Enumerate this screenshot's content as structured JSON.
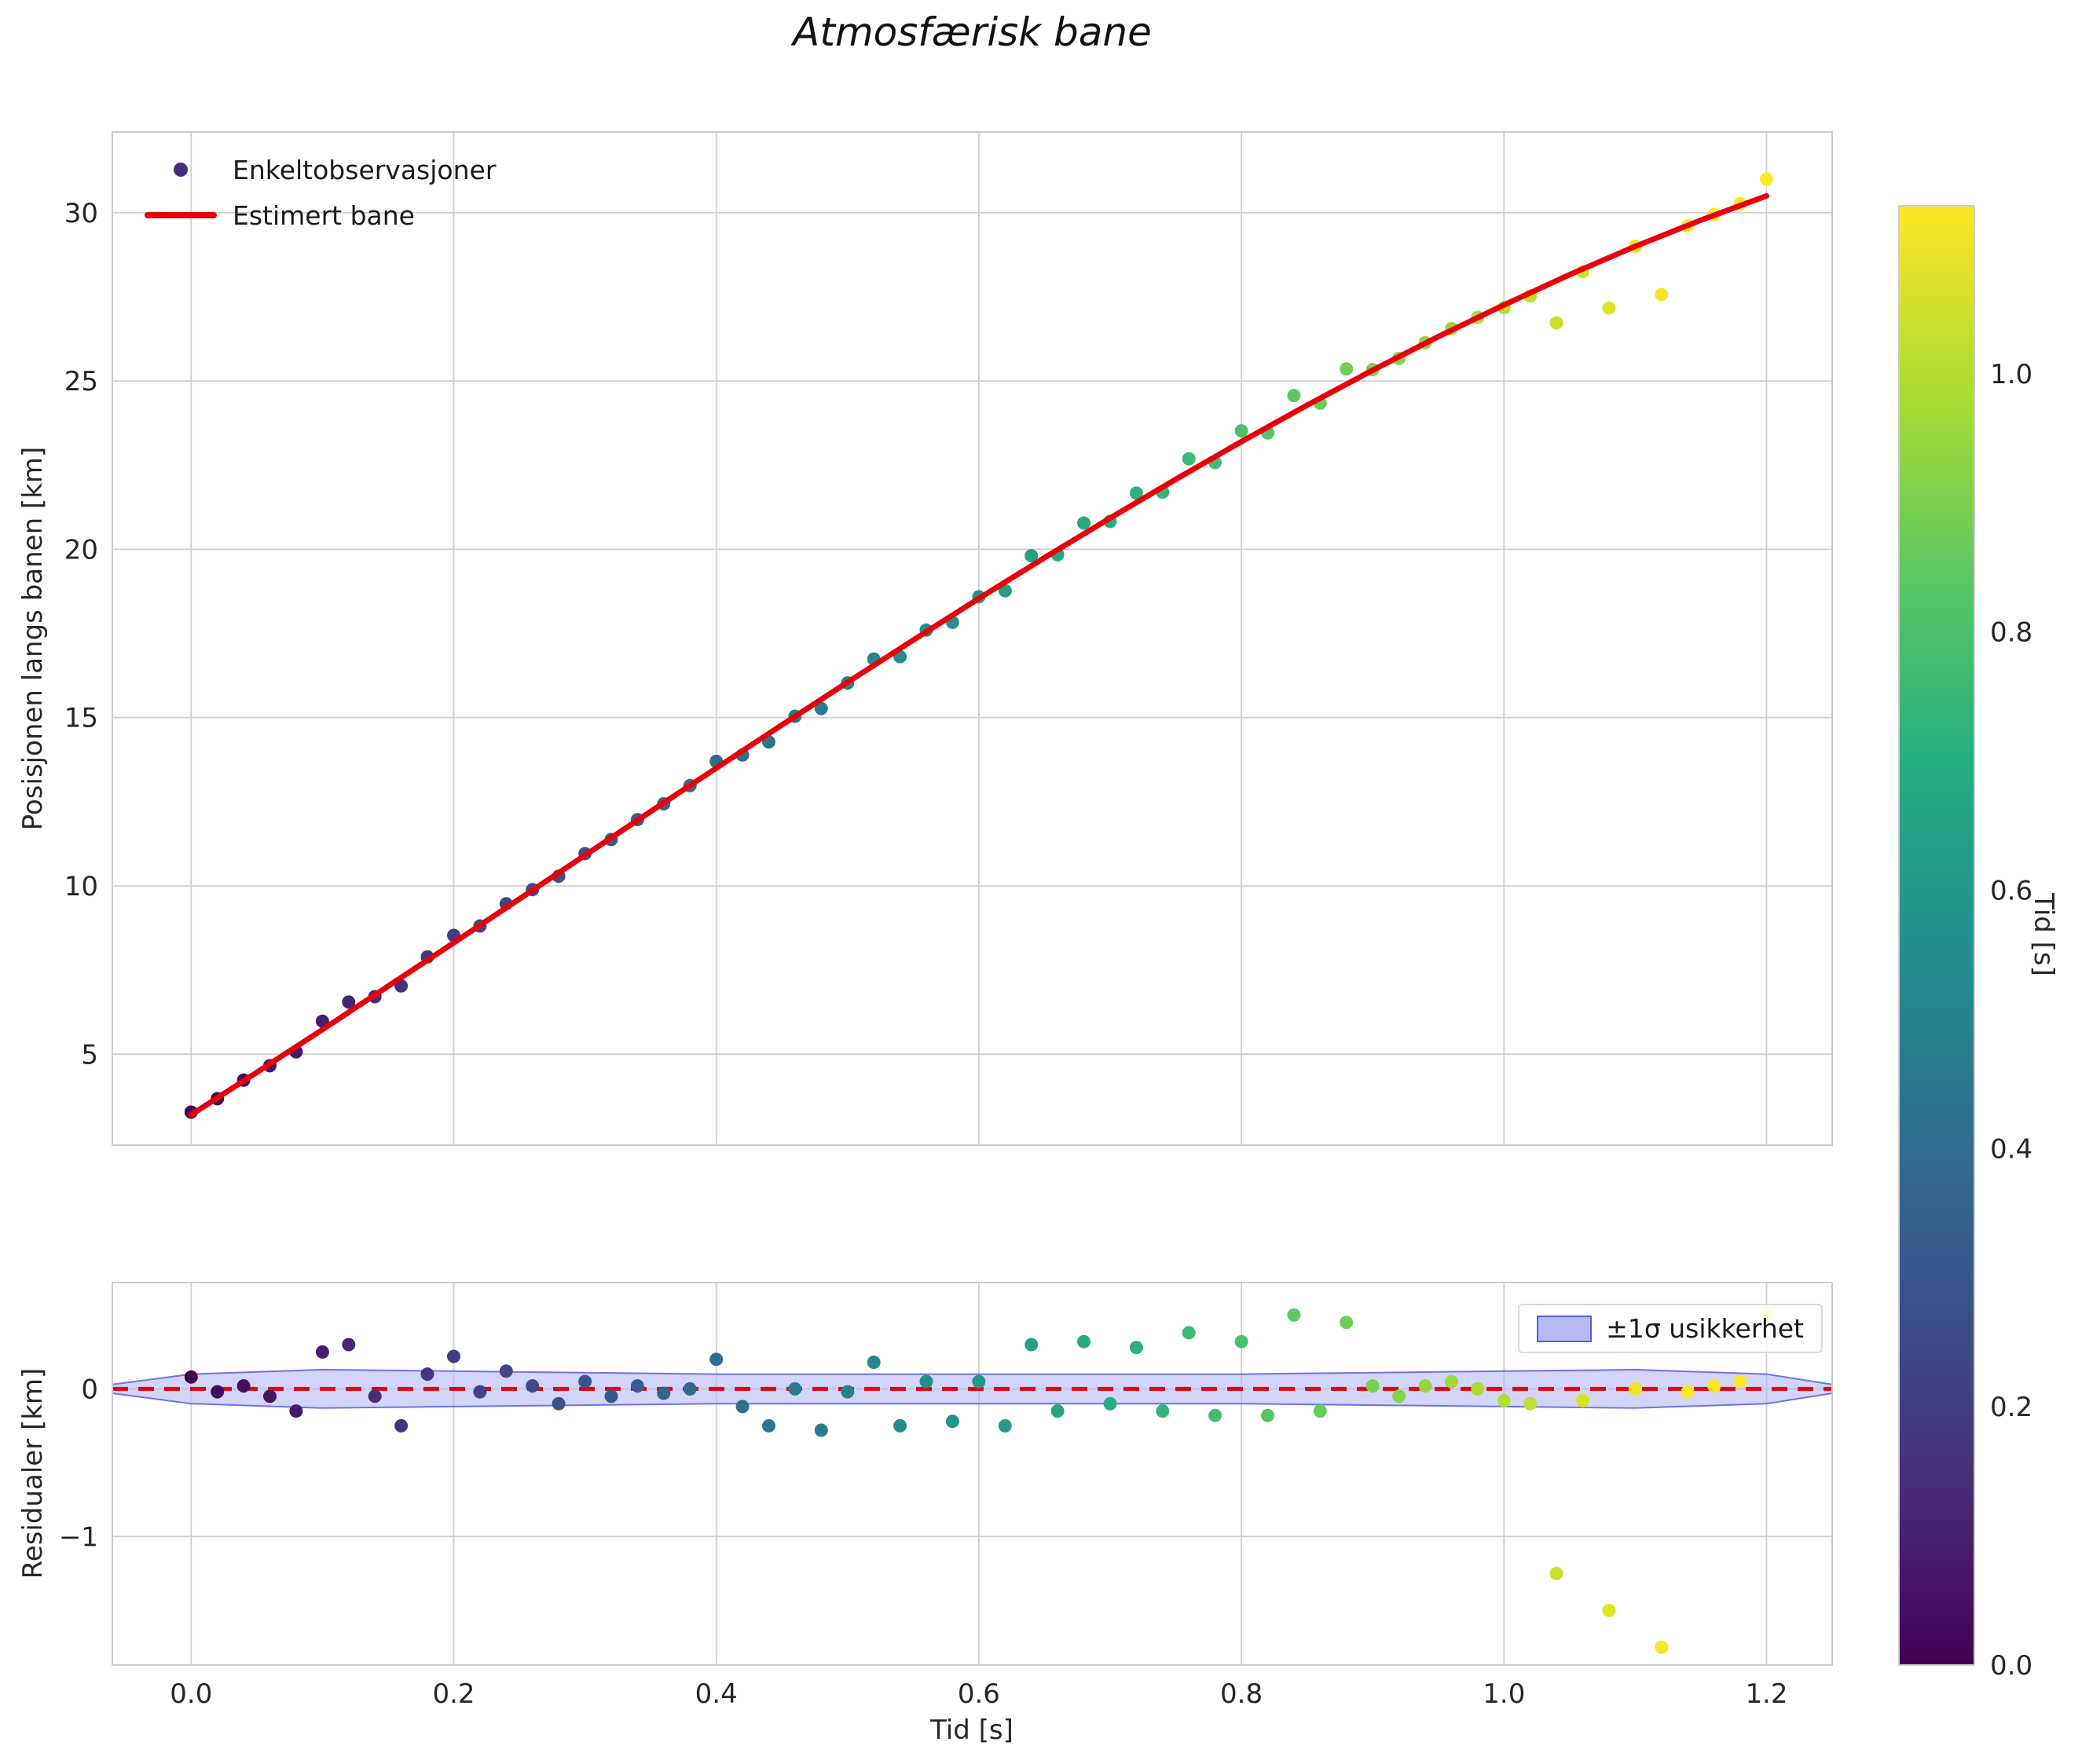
{
  "colors": {
    "fit_line": "#e8000b",
    "grid": "#cfcfcf",
    "spine": "#cccccc",
    "tick_text": "#262626",
    "band_fill": "#b6baf7",
    "band_edge": "#5560e0",
    "legend_marker": "#462d7c",
    "viridis_stops": [
      "#440154",
      "#472d7b",
      "#3b528b",
      "#2c728e",
      "#21918c",
      "#28ae80",
      "#5ec962",
      "#addc30",
      "#fde725"
    ]
  },
  "colorbar": {
    "label": "Tid [s]",
    "vmin": 0,
    "vmax": 1.13,
    "ticks": [
      0,
      0.2,
      0.4,
      0.6,
      0.8,
      1.0
    ],
    "tick_labels": [
      "0.0",
      "0.2",
      "0.4",
      "0.6",
      "0.8",
      "1.0"
    ]
  },
  "chart_data": [
    {
      "id": "trajectory",
      "type": "scatter",
      "title": "Atmosfærisk bane",
      "xlabel": "",
      "ylabel": "Posisjonen langs banen [km]",
      "xlim": [
        -0.06,
        1.25
      ],
      "ylim": [
        2.3,
        32.4
      ],
      "grid": true,
      "legend_position": "upper left",
      "xticks": {
        "values": [
          0,
          0.2,
          0.4,
          0.6,
          0.8,
          1.0,
          1.2
        ],
        "labels": []
      },
      "yticks": {
        "values": [
          5,
          10,
          15,
          20,
          25,
          30
        ],
        "labels": [
          "5",
          "10",
          "15",
          "20",
          "25",
          "30"
        ]
      },
      "series": [
        {
          "name": "Enkeltobservasjoner",
          "type": "scatter",
          "color_by_x": true,
          "x": [
            0.0,
            0.02,
            0.04,
            0.06,
            0.08,
            0.1,
            0.12,
            0.14,
            0.16,
            0.18,
            0.2,
            0.22,
            0.24,
            0.26,
            0.28,
            0.3,
            0.32,
            0.34,
            0.36,
            0.38,
            0.4,
            0.42,
            0.44,
            0.46,
            0.48,
            0.5,
            0.52,
            0.54,
            0.56,
            0.58,
            0.6,
            0.62,
            0.64,
            0.66,
            0.68,
            0.7,
            0.72,
            0.74,
            0.76,
            0.78,
            0.8,
            0.82,
            0.84,
            0.86,
            0.88,
            0.9,
            0.92,
            0.94,
            0.96,
            0.98,
            1.0,
            1.02,
            1.04,
            1.06,
            1.08,
            1.1,
            1.12,
            1.14,
            1.16,
            1.18,
            1.2
          ],
          "y": [
            3.28,
            3.68,
            4.23,
            4.66,
            5.07,
            5.98,
            6.55,
            6.71,
            7.03,
            7.89,
            8.53,
            8.81,
            9.47,
            9.89,
            10.29,
            10.96,
            11.38,
            11.97,
            12.44,
            12.98,
            13.7,
            13.89,
            14.28,
            15.04,
            15.27,
            16.03,
            16.74,
            16.81,
            17.6,
            17.83,
            18.59,
            18.77,
            19.81,
            19.84,
            20.78,
            20.83,
            21.67,
            21.7,
            22.69,
            22.58,
            23.52,
            23.46,
            24.57,
            24.34,
            25.36,
            25.34,
            25.67,
            26.14,
            26.56,
            26.89,
            27.18,
            27.53,
            26.73,
            28.25,
            27.17,
            29.0,
            27.57,
            29.61,
            29.95,
            30.27,
            31.0
          ]
        },
        {
          "name": "Estimert bane",
          "type": "line",
          "width": 7,
          "x": [
            0.0,
            0.05,
            0.1,
            0.15,
            0.2,
            0.25,
            0.3,
            0.35,
            0.4,
            0.45,
            0.5,
            0.55,
            0.6,
            0.65,
            0.7,
            0.75,
            0.8,
            0.85,
            0.9,
            0.95,
            1.0,
            1.05,
            1.1,
            1.15,
            1.2
          ],
          "y": [
            3.2,
            4.46,
            5.73,
            7.02,
            8.31,
            9.61,
            10.91,
            12.21,
            13.5,
            14.78,
            16.05,
            17.3,
            18.54,
            19.75,
            20.93,
            22.08,
            23.2,
            24.28,
            25.32,
            26.32,
            27.26,
            28.16,
            29.0,
            29.78,
            30.5
          ]
        }
      ]
    },
    {
      "id": "residuals",
      "type": "scatter",
      "title": "",
      "xlabel": "Tid [s]",
      "ylabel": "Residualer [km]",
      "xlim": [
        -0.06,
        1.25
      ],
      "ylim": [
        -1.87,
        0.72
      ],
      "grid": true,
      "xticks": {
        "values": [
          0,
          0.2,
          0.4,
          0.6,
          0.8,
          1.0,
          1.2
        ],
        "labels": [
          "0.0",
          "0.2",
          "0.4",
          "0.6",
          "0.8",
          "1.0",
          "1.2"
        ]
      },
      "yticks": {
        "values": [
          0,
          -1
        ],
        "labels": [
          "0",
          "−1"
        ]
      },
      "zero_line": {
        "y": 0,
        "style": "dashed"
      },
      "band": {
        "label": "±1σ usikkerhet",
        "t": [
          -0.06,
          0.0,
          0.1,
          0.2,
          0.3,
          0.4,
          0.5,
          0.6,
          0.7,
          0.8,
          0.9,
          1.0,
          1.1,
          1.2,
          1.25
        ],
        "sigma": [
          0.03,
          0.1,
          0.13,
          0.12,
          0.11,
          0.1,
          0.1,
          0.1,
          0.1,
          0.1,
          0.11,
          0.12,
          0.13,
          0.1,
          0.03
        ]
      },
      "series": [
        {
          "name": "Residualer",
          "type": "scatter",
          "color_by_x": true,
          "x": [
            0.0,
            0.02,
            0.04,
            0.06,
            0.08,
            0.1,
            0.12,
            0.14,
            0.16,
            0.18,
            0.2,
            0.22,
            0.24,
            0.26,
            0.28,
            0.3,
            0.32,
            0.34,
            0.36,
            0.38,
            0.4,
            0.42,
            0.44,
            0.46,
            0.48,
            0.5,
            0.52,
            0.54,
            0.56,
            0.58,
            0.6,
            0.62,
            0.64,
            0.66,
            0.68,
            0.7,
            0.72,
            0.74,
            0.76,
            0.78,
            0.8,
            0.82,
            0.84,
            0.86,
            0.88,
            0.9,
            0.92,
            0.94,
            0.96,
            0.98,
            1.0,
            1.02,
            1.04,
            1.06,
            1.08,
            1.1,
            1.12,
            1.14,
            1.16,
            1.18,
            1.2
          ],
          "y": [
            0.08,
            -0.02,
            0.02,
            -0.05,
            -0.15,
            0.25,
            0.3,
            -0.05,
            -0.25,
            0.1,
            0.22,
            -0.02,
            0.12,
            0.02,
            -0.1,
            0.05,
            -0.05,
            0.02,
            -0.03,
            0.0,
            0.2,
            -0.12,
            -0.25,
            0.0,
            -0.28,
            -0.02,
            0.18,
            -0.25,
            0.05,
            -0.22,
            0.05,
            -0.25,
            0.3,
            -0.15,
            0.32,
            -0.1,
            0.28,
            -0.15,
            0.38,
            -0.18,
            0.32,
            -0.18,
            0.5,
            -0.15,
            0.45,
            0.02,
            -0.05,
            0.02,
            0.05,
            0.0,
            -0.08,
            -0.1,
            -1.25,
            -0.08,
            -1.5,
            0.0,
            -1.75,
            -0.02,
            0.02,
            0.05,
            0.5
          ]
        }
      ]
    }
  ]
}
